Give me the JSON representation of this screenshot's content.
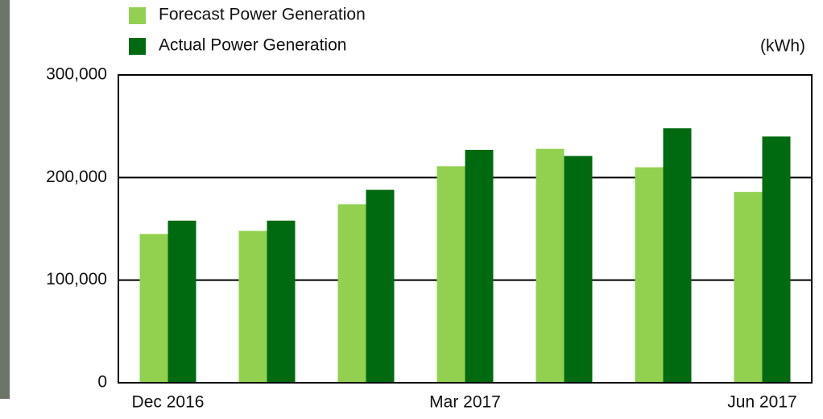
{
  "chart_data": {
    "type": "bar",
    "unit": "(kWh)",
    "categories": [
      "Dec 2016",
      null,
      null,
      "Mar 2017",
      null,
      null,
      "Jun 2017"
    ],
    "series": [
      {
        "name": "Forecast Power Generation",
        "color": "#92d050",
        "values": [
          145000,
          148000,
          174000,
          211000,
          228000,
          210000,
          186000
        ]
      },
      {
        "name": "Actual Power Generation",
        "color": "#006a10",
        "values": [
          158000,
          158000,
          188000,
          227000,
          221000,
          248000,
          240000
        ]
      }
    ],
    "ylim": [
      0,
      300000
    ],
    "yticks": [
      0,
      {
        "value": 100000,
        "label": "100,000"
      },
      {
        "value": 200000,
        "label": "200,000"
      },
      {
        "value": 300000,
        "label": "300,000"
      }
    ],
    "grid": true
  }
}
